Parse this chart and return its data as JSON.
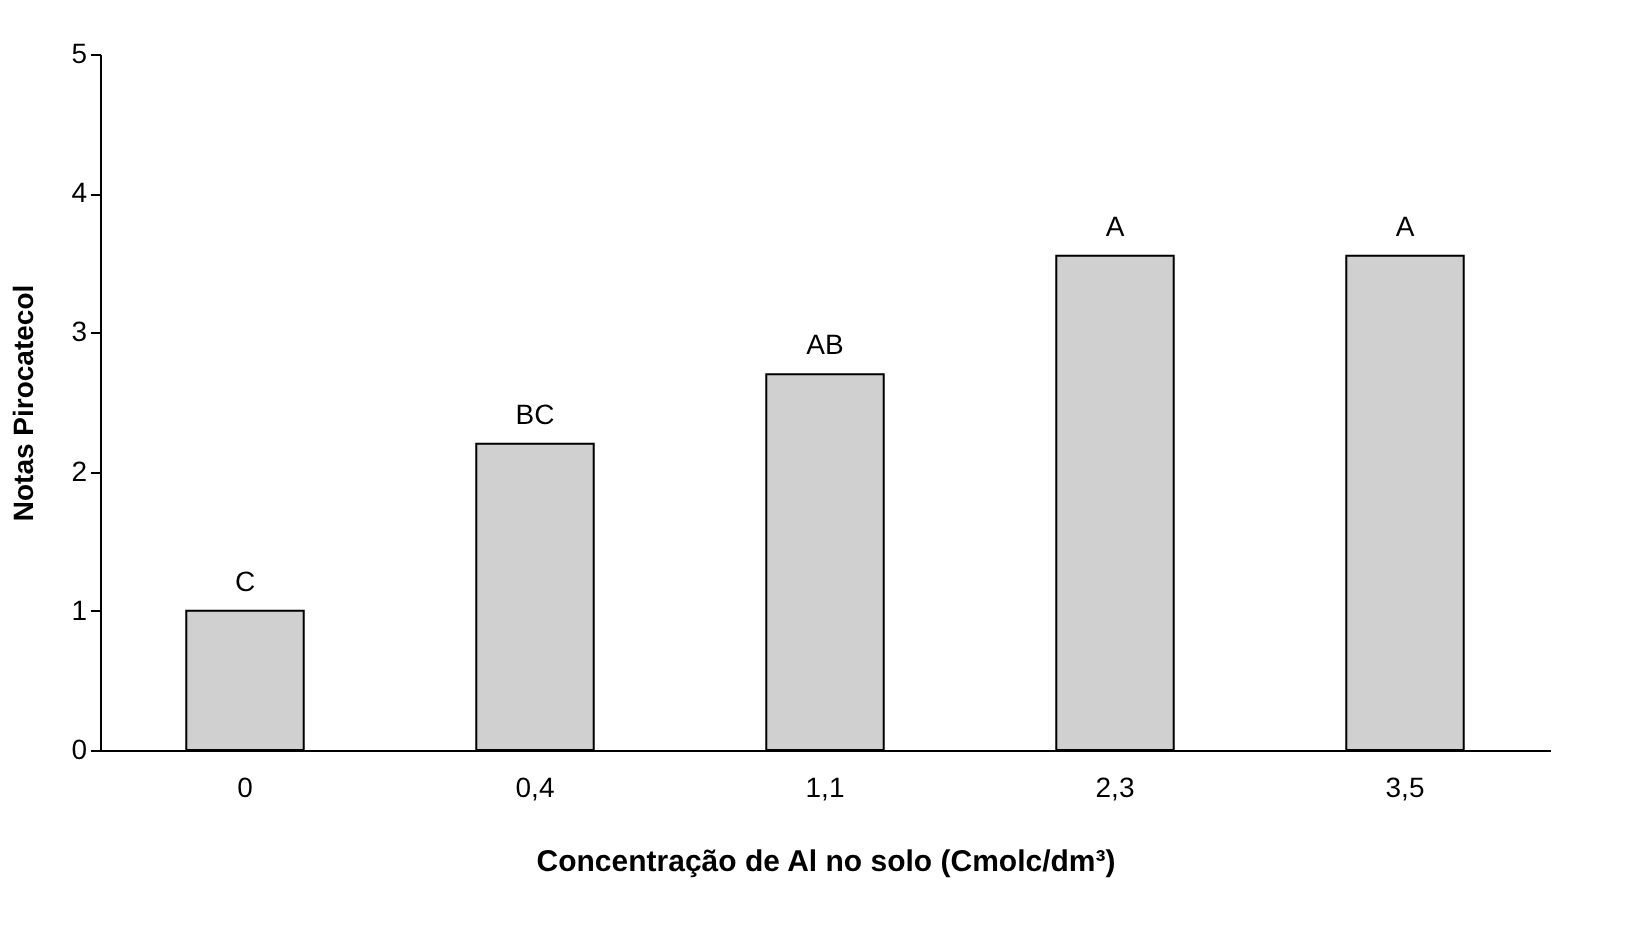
{
  "chart_data": {
    "type": "bar",
    "xlabel": "Concentração de Al no solo (Cmolc/dm³)",
    "ylabel": "Notas Pirocatecol",
    "categories": [
      "0",
      "0,4",
      "1,1",
      "2,3",
      "3,5"
    ],
    "values": [
      1.0,
      2.2,
      2.7,
      3.55,
      3.55
    ],
    "color": "#d0d0d0",
    "ylim": [
      0,
      5
    ],
    "yticks": [
      0,
      1,
      2,
      3,
      4,
      5
    ],
    "grid": false,
    "annotations": [
      {
        "text": "C",
        "x": "0",
        "y": 1.0
      },
      {
        "text": "BC",
        "x": "0,4",
        "y": 2.2
      },
      {
        "text": "AB",
        "x": "1,1",
        "y": 2.7
      },
      {
        "text": "A",
        "x": "2,3",
        "y": 3.55
      },
      {
        "text": "A",
        "x": "3,5",
        "y": 3.55
      }
    ]
  }
}
